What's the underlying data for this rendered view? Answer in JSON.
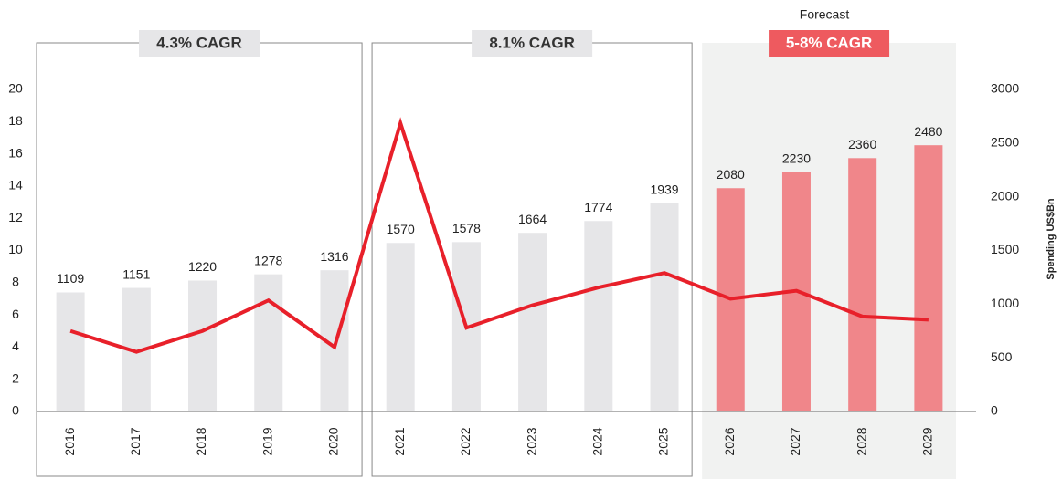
{
  "chart_data": {
    "type": "bar-line",
    "annotation": "Forecast",
    "y2label": "Spending  US$Bn",
    "categories": [
      "2016",
      "2017",
      "2018",
      "2019",
      "2020",
      "2021",
      "2022",
      "2023",
      "2024",
      "2025",
      "2026",
      "2027",
      "2028",
      "2029"
    ],
    "periods": [
      {
        "label": "4.3% CAGR",
        "from": "2016",
        "to": "2020",
        "color": "#e6e6e8",
        "text_color": "#333333",
        "shaded": false
      },
      {
        "label": "8.1% CAGR",
        "from": "2021",
        "to": "2025",
        "color": "#e6e6e8",
        "text_color": "#333333",
        "shaded": false
      },
      {
        "label": "5-8% CAGR",
        "from": "2026",
        "to": "2029",
        "color": "#ee5a5f",
        "text_color": "#ffffff",
        "shaded": true
      }
    ],
    "series": [
      {
        "type": "bar",
        "axis": "y2",
        "colors": [
          "#e6e6e8",
          "#e6e6e8",
          "#e6e6e8",
          "#e6e6e8",
          "#e6e6e8",
          "#e6e6e8",
          "#e6e6e8",
          "#e6e6e8",
          "#e6e6e8",
          "#e6e6e8",
          "#f0868a",
          "#f0868a",
          "#f0868a",
          "#f0868a"
        ],
        "values": [
          1109,
          1151,
          1220,
          1278,
          1316,
          1570,
          1578,
          1664,
          1774,
          1939,
          2080,
          2230,
          2360,
          2480
        ]
      },
      {
        "type": "line",
        "axis": "y",
        "color": "#e8202a",
        "values": [
          5.0,
          3.7,
          5.0,
          6.9,
          4.0,
          17.9,
          5.2,
          6.6,
          7.7,
          8.6,
          7.0,
          7.5,
          5.9,
          5.7
        ]
      }
    ],
    "ylim": [
      0,
      20
    ],
    "yticks": [
      0,
      2,
      4,
      6,
      8,
      10,
      12,
      14,
      16,
      18,
      20
    ],
    "y2lim": [
      0,
      3000
    ],
    "y2ticks": [
      0,
      500,
      1000,
      1500,
      2000,
      2500,
      3000
    ]
  }
}
